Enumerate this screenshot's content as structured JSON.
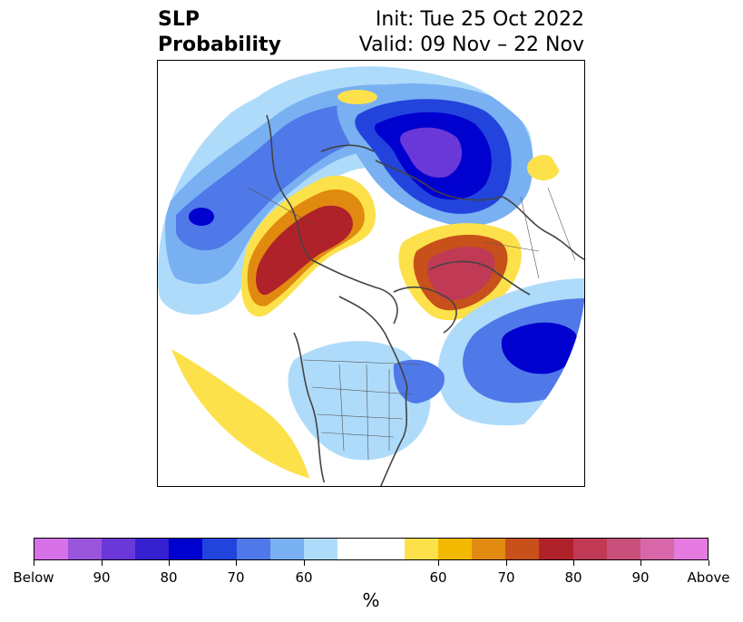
{
  "title": {
    "line1": "SLP",
    "line2": "Probability",
    "init": "Init: Tue 25 Oct 2022",
    "valid": "Valid: 09 Nov – 22 Nov"
  },
  "colorbar": {
    "label": "%",
    "colors": [
      "#d671e8",
      "#9a55dd",
      "#6a37d8",
      "#3520d0",
      "#0000cf",
      "#2244dd",
      "#4f78e8",
      "#78b0f2",
      "#aedbfa",
      "#ffffff",
      "#ffffff",
      "#fde14a",
      "#f3b900",
      "#e08a10",
      "#c8501a",
      "#b0222a",
      "#c03a55",
      "#c9507a",
      "#d867aa",
      "#e57ae0"
    ],
    "ticks": [
      {
        "label": "Below"
      },
      {
        "label": "90"
      },
      {
        "label": "80"
      },
      {
        "label": "70"
      },
      {
        "label": "60"
      },
      {
        "label": "60"
      },
      {
        "label": "70"
      },
      {
        "label": "80"
      },
      {
        "label": "90"
      },
      {
        "label": "Above"
      }
    ]
  },
  "map": {
    "projection": "north-polar-stereographic",
    "region": "Northern Hemisphere"
  }
}
